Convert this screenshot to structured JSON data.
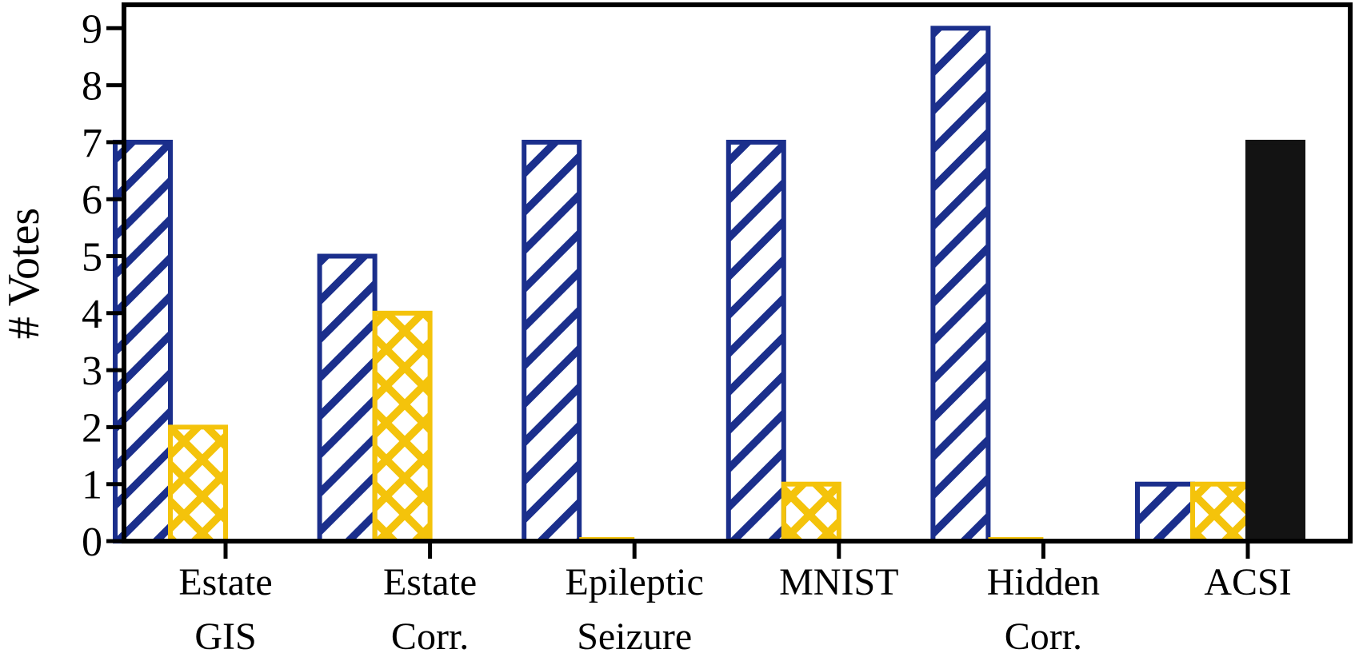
{
  "figure": {
    "background": "#ffffff",
    "axis_color": "#000000"
  },
  "chart_data": {
    "type": "bar",
    "title": "",
    "xlabel": "",
    "ylabel": "# Votes",
    "ylim": [
      0,
      9.4
    ],
    "yticks": [
      0,
      1,
      2,
      3,
      4,
      5,
      6,
      7,
      8,
      9
    ],
    "grid": false,
    "legend": "none",
    "categories": [
      "Estate GIS",
      "Estate Corr.",
      "Epileptic Seizure",
      "MNIST",
      "Hidden Corr.",
      "ACSI"
    ],
    "category_label_lines": [
      [
        "Estate",
        "GIS"
      ],
      [
        "Estate",
        "Corr."
      ],
      [
        "Epileptic",
        "Seizure"
      ],
      [
        "MNIST"
      ],
      [
        "Hidden",
        "Corr."
      ],
      [
        "ACSI"
      ]
    ],
    "series": [
      {
        "name": "blue-diagonal-hatch",
        "hatch": "diagonal",
        "color": "#1b2f8c",
        "values": [
          7,
          5,
          7,
          7,
          9,
          1
        ]
      },
      {
        "name": "gold-crosshatch",
        "hatch": "cross",
        "color": "#f4c30b",
        "values": [
          2,
          4,
          0,
          1,
          0,
          1
        ]
      },
      {
        "name": "black-solid",
        "hatch": "solid",
        "color": "#131313",
        "values": [
          0,
          0,
          0,
          0,
          0,
          7
        ]
      }
    ]
  }
}
